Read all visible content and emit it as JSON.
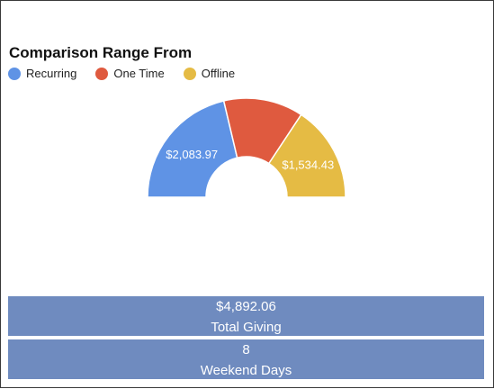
{
  "chart_data": {
    "type": "pie",
    "variant": "half-donut",
    "title": "Comparison Range From",
    "legend_position": "top-left",
    "series": [
      {
        "name": "Recurring",
        "value": 2083.97,
        "label": "$2,083.97",
        "color": "#5f93e5"
      },
      {
        "name": "One Time",
        "value": 1273.66,
        "label": "",
        "color": "#df5a3f"
      },
      {
        "name": "Offline",
        "value": 1534.43,
        "label": "$1,534.43",
        "color": "#e5bb44"
      }
    ]
  },
  "stats": {
    "total": {
      "value": "$4,892.06",
      "label": "Total Giving"
    },
    "weekend": {
      "value": "8",
      "label": "Weekend Days"
    }
  }
}
